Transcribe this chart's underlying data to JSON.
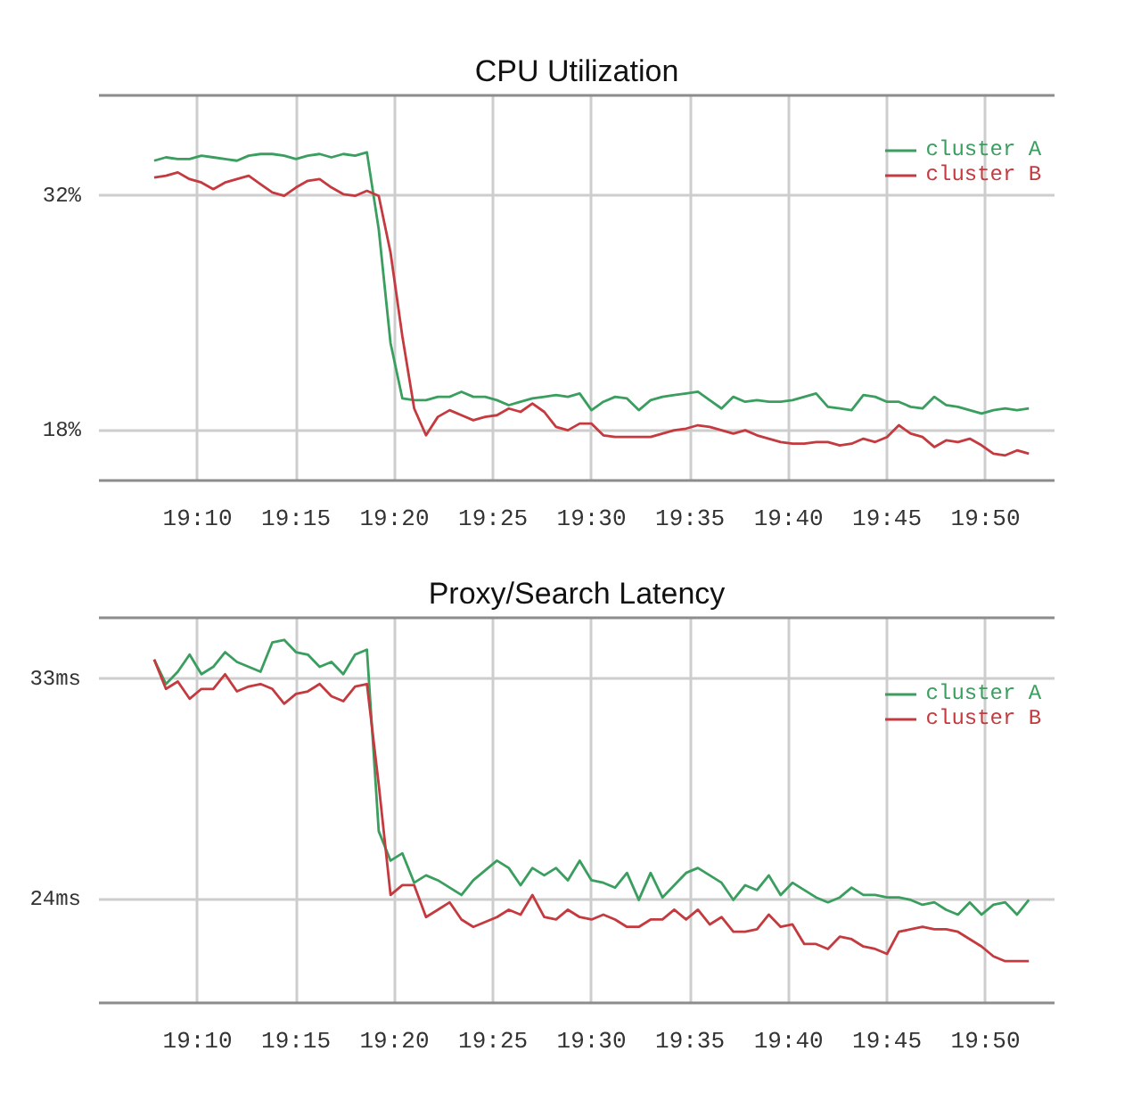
{
  "chart_data": [
    {
      "type": "line",
      "title": "CPU Utilization",
      "x": [
        19.13,
        19.14,
        19.15,
        19.16,
        19.17,
        19.18,
        19.19,
        19.2,
        19.21,
        19.22,
        19.23,
        19.24,
        19.25,
        19.26,
        19.27,
        19.28,
        19.29,
        19.3,
        19.31,
        19.32,
        19.33,
        19.34,
        19.35,
        19.36,
        19.37,
        19.38,
        19.39,
        19.4,
        19.41,
        19.42,
        19.43,
        19.44,
        19.45,
        19.46,
        19.47,
        19.48,
        19.49,
        19.5,
        19.51,
        19.52,
        19.53,
        19.54,
        19.55,
        19.56,
        19.57,
        19.58,
        19.59,
        19.6,
        19.61,
        19.62,
        19.63,
        19.64,
        19.65,
        19.66,
        19.67,
        19.68,
        19.69,
        19.7,
        19.71,
        19.72,
        19.73,
        19.74,
        19.75,
        19.76,
        19.77,
        19.78,
        19.79,
        19.8,
        19.81,
        19.82,
        19.83,
        19.84,
        19.85,
        19.86,
        19.87
      ],
      "xlim": [
        19.0833,
        19.8917
      ],
      "xticks": [
        {
          "value": 19.1667,
          "label": "19:10"
        },
        {
          "value": 19.25,
          "label": "19:15"
        },
        {
          "value": 19.3333,
          "label": "19:20"
        },
        {
          "value": 19.4167,
          "label": "19:25"
        },
        {
          "value": 19.5,
          "label": "19:30"
        },
        {
          "value": 19.5833,
          "label": "19:35"
        },
        {
          "value": 19.6667,
          "label": "19:40"
        },
        {
          "value": 19.75,
          "label": "19:45"
        },
        {
          "value": 19.8333,
          "label": "19:50"
        }
      ],
      "ylim": [
        15,
        38
      ],
      "yticks": [
        {
          "value": 18,
          "label": "18%"
        },
        {
          "value": 32,
          "label": "32%"
        }
      ],
      "grid": true,
      "legend": "top right",
      "series": [
        {
          "name": "cluster A",
          "color": "#3a9e5f",
          "values": [
            34.1,
            34.3,
            34.2,
            34.2,
            34.4,
            34.3,
            34.2,
            34.1,
            34.4,
            34.5,
            34.5,
            34.4,
            34.2,
            34.4,
            34.5,
            34.3,
            34.5,
            34.4,
            34.6,
            30.0,
            23.2,
            19.9,
            19.8,
            19.8,
            20.0,
            20.0,
            20.3,
            20.0,
            20.0,
            19.8,
            19.5,
            19.7,
            19.9,
            20.0,
            20.1,
            20.0,
            20.2,
            19.2,
            19.7,
            20.0,
            19.9,
            19.2,
            19.8,
            20.0,
            20.1,
            20.2,
            20.3,
            19.8,
            19.3,
            20.0,
            19.7,
            19.8,
            19.7,
            19.7,
            19.8,
            20.0,
            20.2,
            19.4,
            19.3,
            19.2,
            20.1,
            20.0,
            19.7,
            19.7,
            19.4,
            19.3,
            20.0,
            19.5,
            19.4,
            19.2,
            19.0,
            19.2,
            19.3,
            19.2,
            19.3
          ]
        },
        {
          "name": "cluster B",
          "color": "#c43a3f",
          "values": [
            33.1,
            33.2,
            33.4,
            33.0,
            32.8,
            32.4,
            32.8,
            33.0,
            33.2,
            32.7,
            32.2,
            32.0,
            32.5,
            32.9,
            33.0,
            32.5,
            32.1,
            32.0,
            32.3,
            32.0,
            28.6,
            23.6,
            19.3,
            17.7,
            18.8,
            19.2,
            18.9,
            18.6,
            18.8,
            18.9,
            19.3,
            19.1,
            19.6,
            19.1,
            18.2,
            18.0,
            18.4,
            18.4,
            17.7,
            17.6,
            17.6,
            17.6,
            17.6,
            17.8,
            18.0,
            18.1,
            18.3,
            18.2,
            18.0,
            17.8,
            18.0,
            17.7,
            17.5,
            17.3,
            17.2,
            17.2,
            17.3,
            17.3,
            17.1,
            17.2,
            17.5,
            17.3,
            17.6,
            18.3,
            17.8,
            17.6,
            17.0,
            17.4,
            17.3,
            17.5,
            17.1,
            16.6,
            16.5,
            16.8,
            16.6
          ]
        }
      ]
    },
    {
      "type": "line",
      "title": "Proxy/Search Latency",
      "x": [
        19.13,
        19.14,
        19.15,
        19.16,
        19.17,
        19.18,
        19.19,
        19.2,
        19.21,
        19.22,
        19.23,
        19.24,
        19.25,
        19.26,
        19.27,
        19.28,
        19.29,
        19.3,
        19.31,
        19.32,
        19.33,
        19.34,
        19.35,
        19.36,
        19.37,
        19.38,
        19.39,
        19.4,
        19.41,
        19.42,
        19.43,
        19.44,
        19.45,
        19.46,
        19.47,
        19.48,
        19.49,
        19.5,
        19.51,
        19.52,
        19.53,
        19.54,
        19.55,
        19.56,
        19.57,
        19.58,
        19.59,
        19.6,
        19.61,
        19.62,
        19.63,
        19.64,
        19.65,
        19.66,
        19.67,
        19.68,
        19.69,
        19.7,
        19.71,
        19.72,
        19.73,
        19.74,
        19.75,
        19.76,
        19.77,
        19.78,
        19.79,
        19.8,
        19.81,
        19.82,
        19.83,
        19.84,
        19.85,
        19.86,
        19.87
      ],
      "xlim": [
        19.0833,
        19.8917
      ],
      "xticks": [
        {
          "value": 19.1667,
          "label": "19:10"
        },
        {
          "value": 19.25,
          "label": "19:15"
        },
        {
          "value": 19.3333,
          "label": "19:20"
        },
        {
          "value": 19.4167,
          "label": "19:25"
        },
        {
          "value": 19.5,
          "label": "19:30"
        },
        {
          "value": 19.5833,
          "label": "19:35"
        },
        {
          "value": 19.6667,
          "label": "19:40"
        },
        {
          "value": 19.75,
          "label": "19:45"
        },
        {
          "value": 19.8333,
          "label": "19:50"
        }
      ],
      "ylim": [
        19.8,
        35.5
      ],
      "yticks": [
        {
          "value": 24,
          "label": "24ms"
        },
        {
          "value": 33,
          "label": "33ms"
        }
      ],
      "grid": true,
      "legend": "top right",
      "series": [
        {
          "name": "cluster A",
          "color": "#3a9e5f",
          "values": [
            33.8,
            32.8,
            33.3,
            34.0,
            33.2,
            33.5,
            34.1,
            33.7,
            33.5,
            33.3,
            34.5,
            34.6,
            34.1,
            34.0,
            33.5,
            33.7,
            33.2,
            34.0,
            34.2,
            26.8,
            25.6,
            25.9,
            24.7,
            25.0,
            24.8,
            24.5,
            24.2,
            24.8,
            25.2,
            25.6,
            25.3,
            24.6,
            25.3,
            25.0,
            25.3,
            24.8,
            25.6,
            24.8,
            24.7,
            24.5,
            25.1,
            24.0,
            25.1,
            24.1,
            24.6,
            25.1,
            25.3,
            25.0,
            24.7,
            24.0,
            24.6,
            24.4,
            25.0,
            24.2,
            24.7,
            24.4,
            24.1,
            23.9,
            24.1,
            24.5,
            24.2,
            24.2,
            24.1,
            24.1,
            24.0,
            23.8,
            23.9,
            23.6,
            23.4,
            23.9,
            23.4,
            23.8,
            23.9,
            23.4,
            24.0
          ]
        },
        {
          "name": "cluster B",
          "color": "#c43a3f",
          "values": [
            33.8,
            32.6,
            32.9,
            32.2,
            32.6,
            32.6,
            33.2,
            32.5,
            32.7,
            32.8,
            32.6,
            32.0,
            32.4,
            32.5,
            32.8,
            32.3,
            32.1,
            32.7,
            32.8,
            28.7,
            24.2,
            24.6,
            24.6,
            23.3,
            23.6,
            23.9,
            23.2,
            22.9,
            23.1,
            23.3,
            23.6,
            23.4,
            24.2,
            23.3,
            23.2,
            23.6,
            23.3,
            23.2,
            23.4,
            23.2,
            22.9,
            22.9,
            23.2,
            23.2,
            23.6,
            23.2,
            23.6,
            23.0,
            23.3,
            22.7,
            22.7,
            22.8,
            23.4,
            22.9,
            23.0,
            22.2,
            22.2,
            22.0,
            22.5,
            22.4,
            22.1,
            22.0,
            21.8,
            22.7,
            22.8,
            22.9,
            22.8,
            22.8,
            22.7,
            22.4,
            22.1,
            21.7,
            21.5,
            21.5,
            21.5
          ]
        }
      ]
    }
  ]
}
